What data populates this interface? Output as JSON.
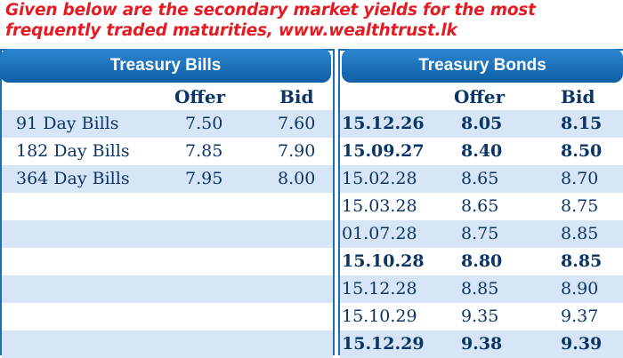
{
  "headline": "Given below are the secondary market yields for the most frequently traded maturities, www.wealthtrust.lk",
  "bills": {
    "title": "Treasury Bills",
    "col_offer": "Offer",
    "col_bid": "Bid",
    "rows": [
      {
        "name": "91 Day Bills",
        "offer": "7.50",
        "bid": "7.60"
      },
      {
        "name": "182 Day Bills",
        "offer": "7.85",
        "bid": "7.90"
      },
      {
        "name": "364 Day Bills",
        "offer": "7.95",
        "bid": "8.00"
      }
    ]
  },
  "bonds": {
    "title": "Treasury Bonds",
    "col_offer": "Offer",
    "col_bid": "Bid",
    "rows": [
      {
        "maturity": "15.12.26",
        "offer": "8.05",
        "bid": "8.15",
        "bold": true
      },
      {
        "maturity": "15.09.27",
        "offer": "8.40",
        "bid": "8.50",
        "bold": true
      },
      {
        "maturity": "15.02.28",
        "offer": "8.65",
        "bid": "8.70",
        "bold": false
      },
      {
        "maturity": "15.03.28",
        "offer": "8.65",
        "bid": "8.75",
        "bold": false
      },
      {
        "maturity": "01.07.28",
        "offer": "8.75",
        "bid": "8.85",
        "bold": false
      },
      {
        "maturity": "15.10.28",
        "offer": "8.80",
        "bid": "8.85",
        "bold": true
      },
      {
        "maturity": "15.12.28",
        "offer": "8.85",
        "bid": "8.90",
        "bold": false
      },
      {
        "maturity": "15.10.29",
        "offer": "9.35",
        "bid": "9.37",
        "bold": false
      },
      {
        "maturity": "15.12.29",
        "offer": "9.38",
        "bid": "9.39",
        "bold": true
      }
    ]
  },
  "colors": {
    "headline": "#e31b23",
    "tab": "#1a6fb4",
    "row_shade": "#d6e6f6",
    "text": "#0b3566"
  }
}
